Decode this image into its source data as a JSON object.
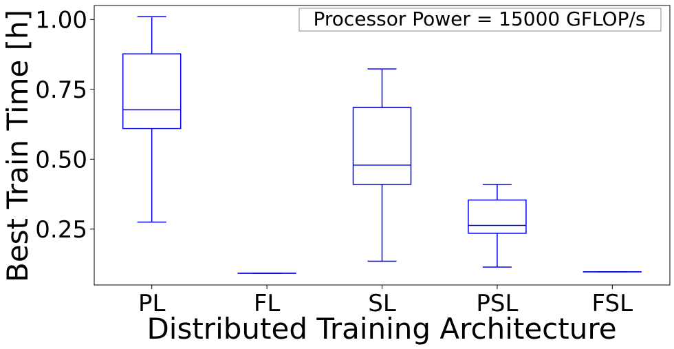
{
  "chart_data": {
    "type": "box",
    "title": "",
    "annotation": "Processor Power = 15000 GFLOP/s",
    "xlabel": "Distributed Training Architecture",
    "ylabel": "Best Train Time [h]",
    "categories": [
      "PL",
      "FL",
      "SL",
      "PSL",
      "FSL"
    ],
    "ylim": [
      0.05,
      1.05
    ],
    "yticks": [
      0.25,
      0.5,
      0.75,
      1.0
    ],
    "ytick_labels": [
      "0.25",
      "0.50",
      "0.75",
      "1.00"
    ],
    "grid": false,
    "box_color": "#0000ee",
    "boxes": [
      {
        "category": "PL",
        "whisker_low": 0.275,
        "q1": 0.61,
        "median": 0.677,
        "q3": 0.877,
        "whisker_high": 1.01
      },
      {
        "category": "FL",
        "whisker_low": 0.092,
        "q1": 0.092,
        "median": 0.092,
        "q3": 0.092,
        "whisker_high": 0.092
      },
      {
        "category": "SL",
        "whisker_low": 0.135,
        "q1": 0.41,
        "median": 0.479,
        "q3": 0.685,
        "whisker_high": 0.823
      },
      {
        "category": "PSL",
        "whisker_low": 0.114,
        "q1": 0.235,
        "median": 0.263,
        "q3": 0.354,
        "whisker_high": 0.41
      },
      {
        "category": "FSL",
        "whisker_low": 0.097,
        "q1": 0.097,
        "median": 0.097,
        "q3": 0.097,
        "whisker_high": 0.097
      }
    ]
  }
}
